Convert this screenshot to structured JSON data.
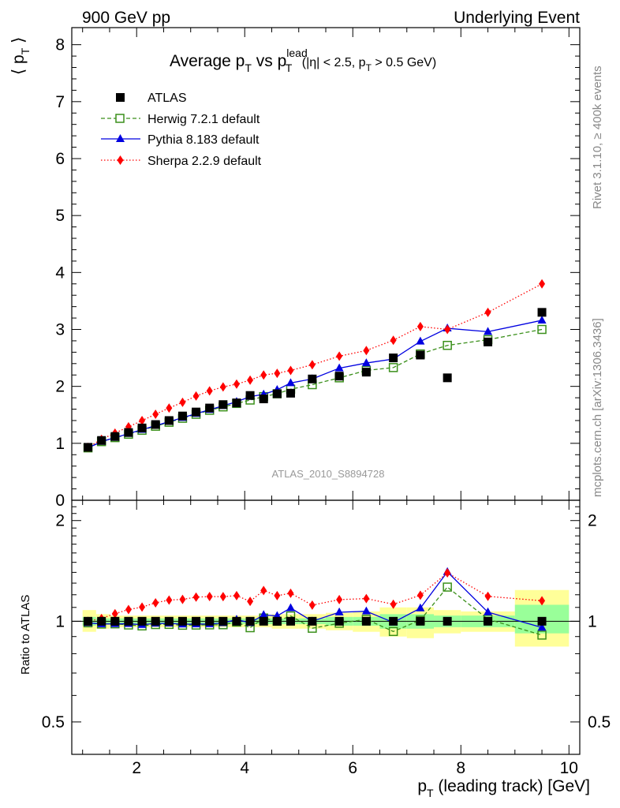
{
  "header": {
    "left": "900 GeV pp",
    "right": "Underlying Event"
  },
  "plot_title": {
    "main": "Average p",
    "main_sub": "T",
    "vs": " vs p",
    "vs_sup": "lead",
    "vs_sub": "T",
    "cuts_a": " (|η| < 2.5, p",
    "cuts_sub": "T",
    "cuts_b": " > 0.5 GeV)"
  },
  "side_text": {
    "rivet": "Rivet 3.1.10, ≥ 400k events",
    "source": "mcplots.cern.ch [arXiv:1306.3436]"
  },
  "analysis_label": "ATLAS_2010_S8894728",
  "axes": {
    "y_main": "⟨ p",
    "y_main_sub": "T",
    "y_main_end": " ⟩",
    "y_ratio": "Ratio to ATLAS",
    "x": "p",
    "x_sub": "T",
    "x_rest": " (leading track) [GeV]"
  },
  "colors": {
    "atlas": "#000000",
    "herwig": "#3a8f1a",
    "pythia": "#0000e0",
    "sherpa": "#ff0000",
    "band_outer": "#ffff99",
    "band_inner": "#99ff99"
  },
  "chart_data": {
    "type": "line",
    "x_label": "pT (leading track) [GeV]",
    "xlim": [
      0.8,
      10.2
    ],
    "x_ticks": [
      2,
      4,
      6,
      8,
      10
    ],
    "main": {
      "ylabel": "⟨ pT ⟩",
      "ylim": [
        0,
        8.3
      ],
      "y_ticks": [
        0,
        1,
        2,
        3,
        4,
        5,
        6,
        7,
        8
      ]
    },
    "ratio": {
      "ylabel": "Ratio to ATLAS",
      "ylim": [
        0.4,
        2.3
      ],
      "scale": "log",
      "y_ticks": [
        0.5,
        1,
        2
      ]
    },
    "x": [
      1.1,
      1.35,
      1.6,
      1.85,
      2.1,
      2.35,
      2.6,
      2.85,
      3.1,
      3.35,
      3.6,
      3.85,
      4.1,
      4.35,
      4.6,
      4.85,
      5.25,
      5.75,
      6.25,
      6.75,
      7.25,
      7.75,
      8.5,
      9.5
    ],
    "series": [
      {
        "name": "ATLAS",
        "marker": "square-filled",
        "values": [
          0.93,
          1.05,
          1.12,
          1.19,
          1.27,
          1.33,
          1.4,
          1.48,
          1.55,
          1.62,
          1.68,
          1.71,
          1.84,
          1.78,
          1.87,
          1.88,
          2.13,
          2.18,
          2.25,
          2.5,
          2.55,
          2.15,
          2.78,
          3.3
        ]
      },
      {
        "name": "Herwig 7.2.1 default",
        "marker": "square-open",
        "line": "dashed",
        "values": [
          0.92,
          1.03,
          1.1,
          1.16,
          1.23,
          1.3,
          1.37,
          1.44,
          1.51,
          1.58,
          1.64,
          1.7,
          1.76,
          1.82,
          1.87,
          1.95,
          2.03,
          2.15,
          2.28,
          2.33,
          2.57,
          2.72,
          2.82,
          3.0
        ]
      },
      {
        "name": "Pythia 8.183 default",
        "marker": "triangle",
        "line": "solid",
        "values": [
          0.92,
          1.03,
          1.1,
          1.17,
          1.24,
          1.31,
          1.38,
          1.45,
          1.52,
          1.59,
          1.66,
          1.73,
          1.82,
          1.86,
          1.94,
          2.06,
          2.13,
          2.32,
          2.41,
          2.48,
          2.79,
          3.02,
          2.96,
          3.16
        ]
      },
      {
        "name": "Sherpa 2.2.9 default",
        "marker": "diamond",
        "line": "dotted",
        "values": [
          0.93,
          1.07,
          1.18,
          1.29,
          1.4,
          1.51,
          1.62,
          1.72,
          1.83,
          1.92,
          1.99,
          2.04,
          2.11,
          2.2,
          2.23,
          2.28,
          2.38,
          2.53,
          2.63,
          2.81,
          3.05,
          3.0,
          3.3,
          3.8
        ]
      }
    ],
    "uncertainty_bands": {
      "bins": [
        [
          1.0,
          1.25
        ],
        [
          1.25,
          1.5
        ],
        [
          1.5,
          1.75
        ],
        [
          1.75,
          2.0
        ],
        [
          2.0,
          2.25
        ],
        [
          2.25,
          2.5
        ],
        [
          2.5,
          2.75
        ],
        [
          2.75,
          3.0
        ],
        [
          3.0,
          3.25
        ],
        [
          3.25,
          3.5
        ],
        [
          3.5,
          3.75
        ],
        [
          3.75,
          4.0
        ],
        [
          4.0,
          4.25
        ],
        [
          4.25,
          4.5
        ],
        [
          4.5,
          4.75
        ],
        [
          4.75,
          5.0
        ],
        [
          5.0,
          5.5
        ],
        [
          5.5,
          6.0
        ],
        [
          6.0,
          6.5
        ],
        [
          6.5,
          7.0
        ],
        [
          7.0,
          7.5
        ],
        [
          7.5,
          8.0
        ],
        [
          8.0,
          9.0
        ],
        [
          9.0,
          10.0
        ]
      ],
      "outer_lo": [
        0.93,
        0.95,
        0.96,
        0.96,
        0.96,
        0.96,
        0.96,
        0.96,
        0.96,
        0.96,
        0.96,
        0.96,
        0.96,
        0.96,
        0.95,
        0.95,
        0.95,
        0.94,
        0.93,
        0.9,
        0.89,
        0.92,
        0.93,
        0.84
      ],
      "outer_hi": [
        1.08,
        1.05,
        1.04,
        1.04,
        1.04,
        1.04,
        1.04,
        1.04,
        1.04,
        1.04,
        1.04,
        1.04,
        1.04,
        1.04,
        1.05,
        1.05,
        1.05,
        1.06,
        1.07,
        1.1,
        1.1,
        1.08,
        1.07,
        1.24
      ],
      "inner_lo": [
        0.97,
        0.98,
        0.98,
        0.98,
        0.98,
        0.98,
        0.98,
        0.98,
        0.98,
        0.98,
        0.98,
        0.98,
        0.98,
        0.98,
        0.98,
        0.98,
        0.98,
        0.97,
        0.97,
        0.95,
        0.95,
        0.96,
        0.96,
        0.92
      ],
      "inner_hi": [
        1.03,
        1.02,
        1.02,
        1.02,
        1.02,
        1.02,
        1.02,
        1.02,
        1.02,
        1.02,
        1.02,
        1.02,
        1.02,
        1.02,
        1.02,
        1.02,
        1.02,
        1.03,
        1.03,
        1.05,
        1.05,
        1.04,
        1.04,
        1.12
      ]
    }
  }
}
